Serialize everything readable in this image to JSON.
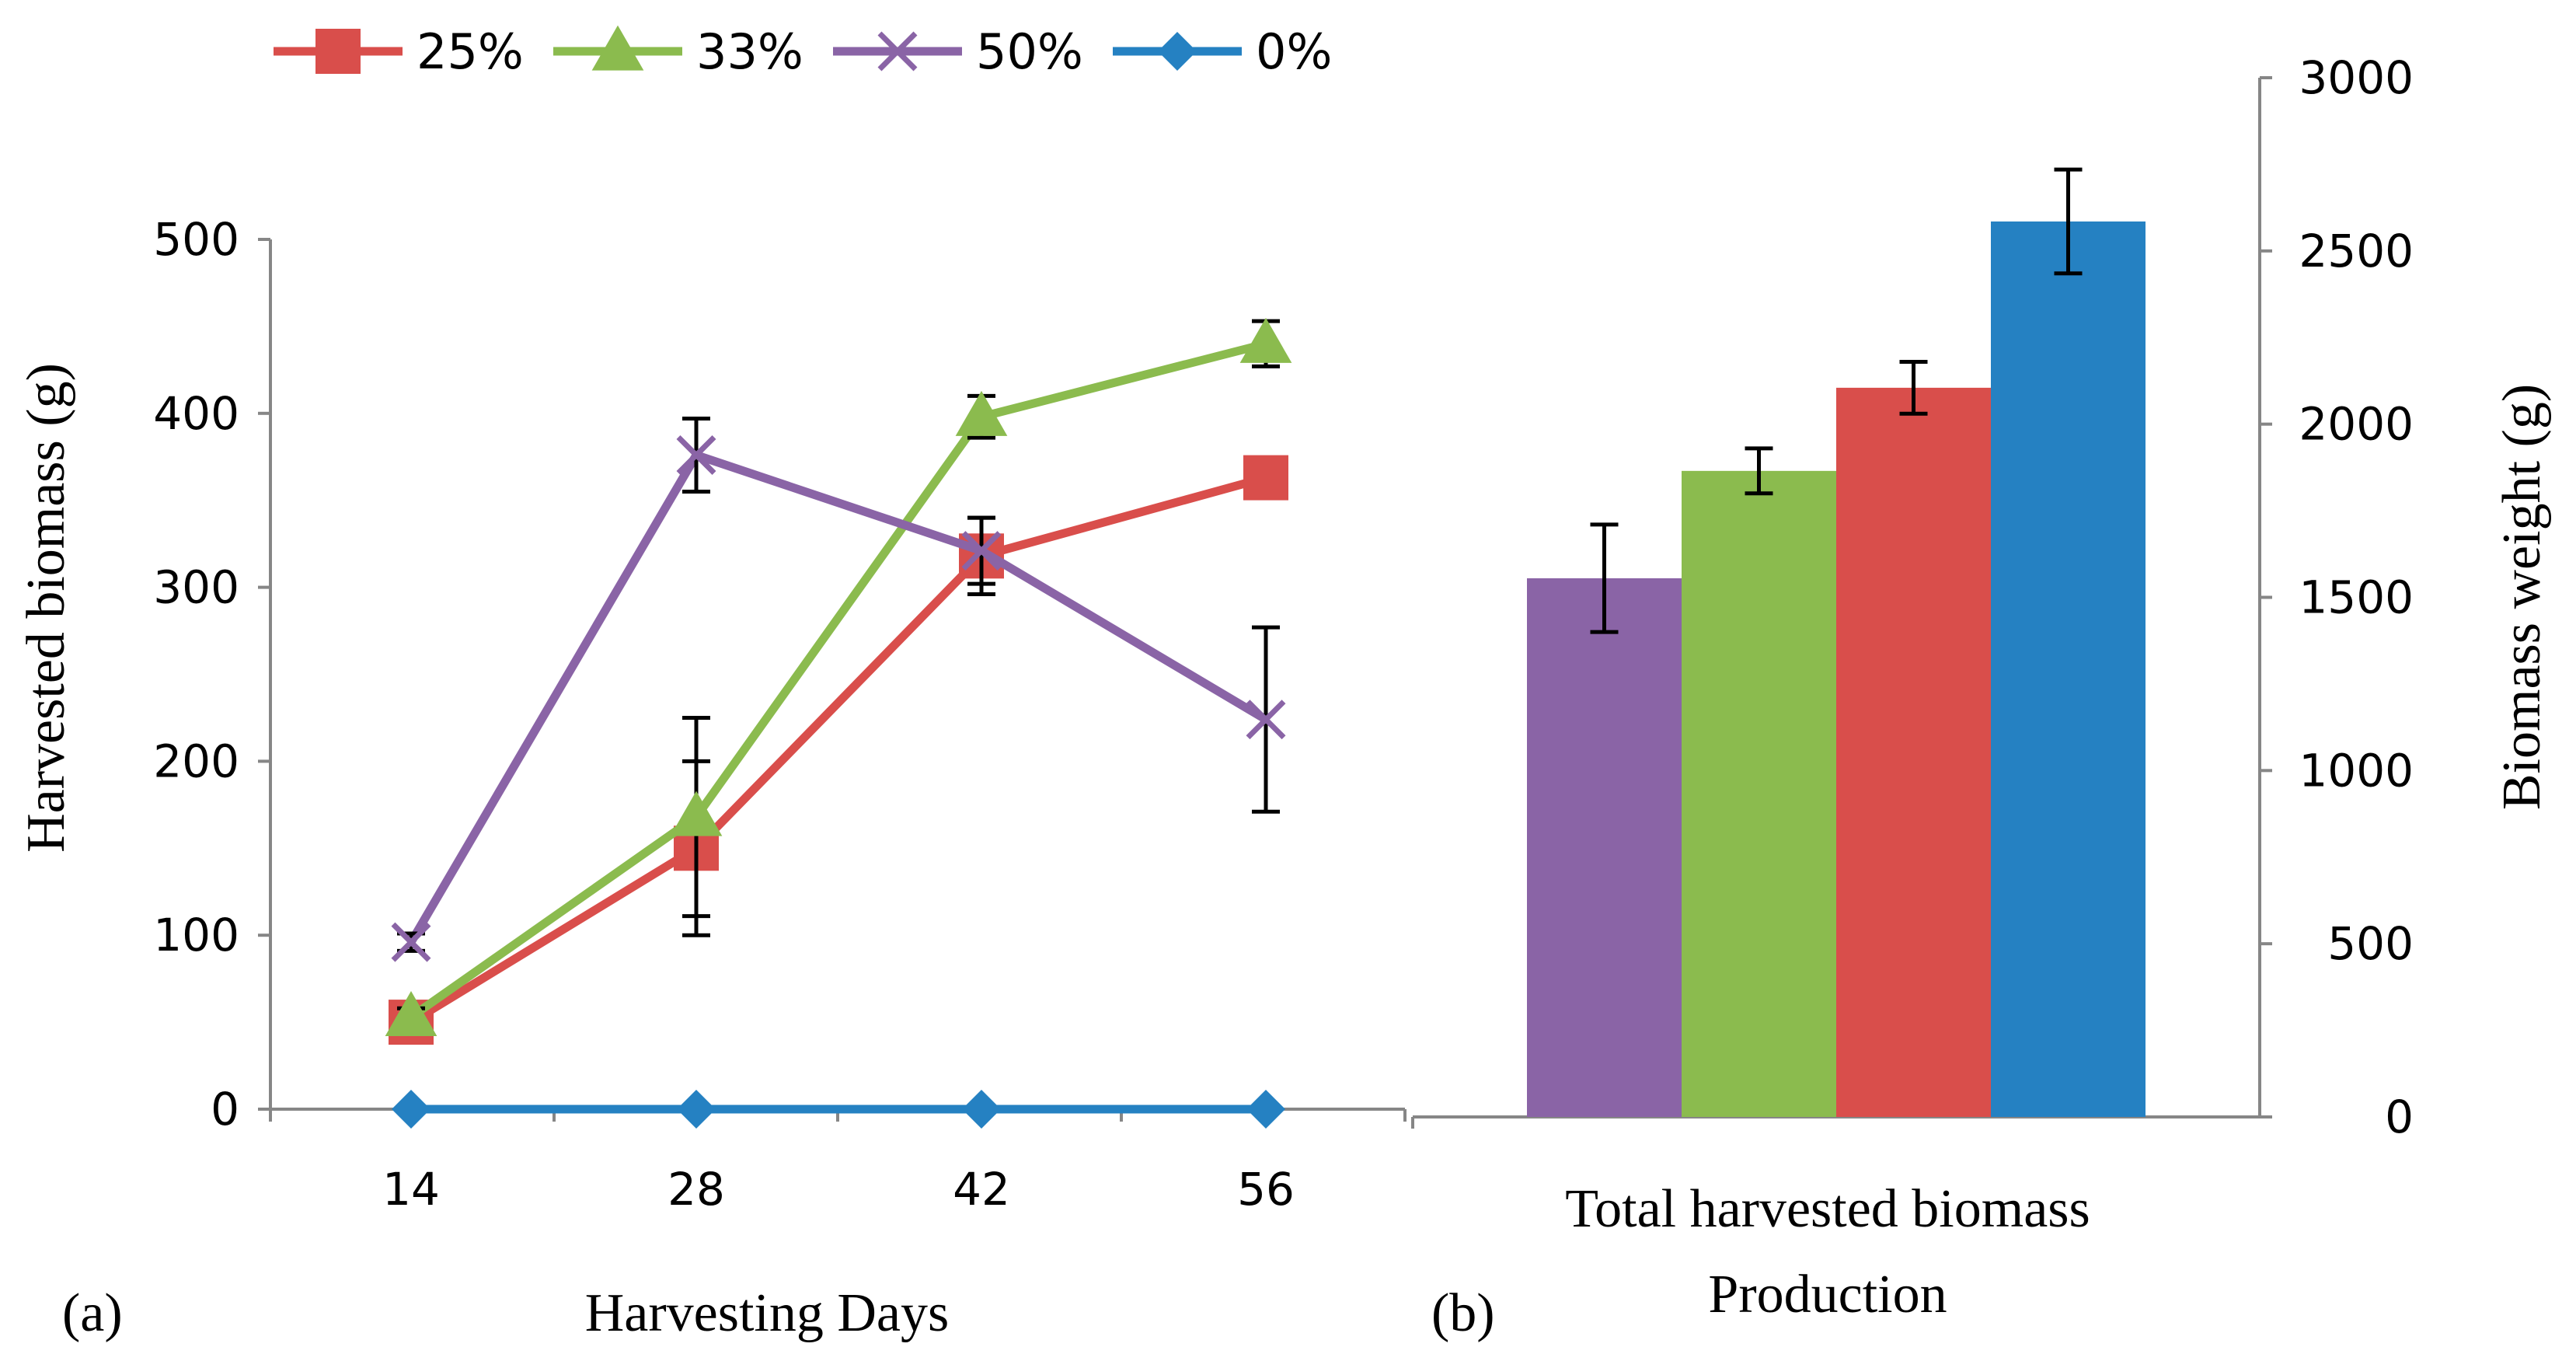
{
  "chart_data": [
    {
      "panel_label": "(a)",
      "type": "line",
      "xlabel": "Harvesting Days",
      "ylabel": "Harvested biomass (g)",
      "categories": [
        "14",
        "28",
        "42",
        "56"
      ],
      "ylim": [
        0,
        500
      ],
      "yticks": [
        "0",
        "100",
        "200",
        "300",
        "400",
        "500"
      ],
      "grid": false,
      "legend_position": "top",
      "series": [
        {
          "name": "25%",
          "color": "#D94E4B",
          "marker": "square",
          "values": [
            50,
            150,
            318,
            363
          ],
          "errors": [
            5,
            50,
            22,
            0
          ]
        },
        {
          "name": "33%",
          "color": "#8BBB4E",
          "marker": "triangle",
          "values": [
            53,
            168,
            398,
            440
          ],
          "errors": [
            5,
            57,
            12,
            13
          ]
        },
        {
          "name": "50%",
          "color": "#8A64A6",
          "marker": "x",
          "values": [
            96,
            376,
            321,
            224
          ],
          "errors": [
            5,
            21,
            19,
            53
          ]
        },
        {
          "name": "0%",
          "color": "#2581C2",
          "marker": "diamond",
          "values": [
            0,
            0,
            0,
            0
          ],
          "errors": [
            0,
            0,
            0,
            0
          ]
        }
      ]
    },
    {
      "panel_label": "(b)",
      "type": "bar",
      "xlabel": "Total harvested biomass Production",
      "xlabel_lines": [
        "Total harvested biomass",
        "Production"
      ],
      "ylabel": "Biomass weight (g)",
      "ylim": [
        0,
        3000
      ],
      "yticks": [
        "0",
        "500",
        "1000",
        "1500",
        "2000",
        "2500",
        "3000"
      ],
      "grid": false,
      "series": [
        {
          "name": "50%",
          "color": "#8A64A6",
          "value": 1555,
          "error": 155
        },
        {
          "name": "33%",
          "color": "#8BBB4E",
          "value": 1865,
          "error": 65
        },
        {
          "name": "25%",
          "color": "#D94E4B",
          "value": 2105,
          "error": 75
        },
        {
          "name": "0%",
          "color": "#2581C2",
          "value": 2585,
          "error": 150
        }
      ]
    }
  ]
}
